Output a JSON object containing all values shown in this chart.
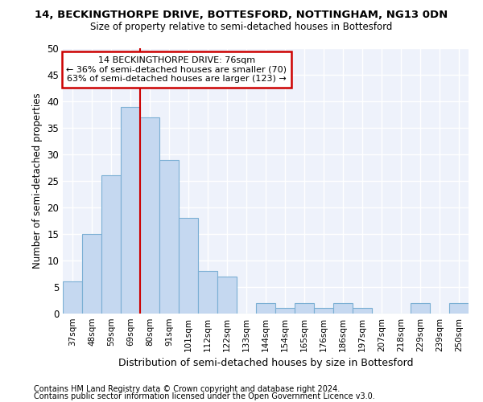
{
  "title": "14, BECKINGTHORPE DRIVE, BOTTESFORD, NOTTINGHAM, NG13 0DN",
  "subtitle": "Size of property relative to semi-detached houses in Bottesford",
  "xlabel": "Distribution of semi-detached houses by size in Bottesford",
  "ylabel": "Number of semi-detached properties",
  "footnote1": "Contains HM Land Registry data © Crown copyright and database right 2024.",
  "footnote2": "Contains public sector information licensed under the Open Government Licence v3.0.",
  "bins": [
    "37sqm",
    "48sqm",
    "59sqm",
    "69sqm",
    "80sqm",
    "91sqm",
    "101sqm",
    "112sqm",
    "122sqm",
    "133sqm",
    "144sqm",
    "154sqm",
    "165sqm",
    "176sqm",
    "186sqm",
    "197sqm",
    "207sqm",
    "218sqm",
    "229sqm",
    "239sqm",
    "250sqm"
  ],
  "values": [
    6,
    15,
    26,
    39,
    37,
    29,
    18,
    8,
    7,
    0,
    2,
    1,
    2,
    1,
    2,
    1,
    0,
    0,
    2,
    0,
    2
  ],
  "bar_color": "#c5d8f0",
  "bar_edge_color": "#7bafd4",
  "annotation_text_line1": "14 BECKINGTHORPE DRIVE: 76sqm",
  "annotation_text_line2": "← 36% of semi-detached houses are smaller (70)",
  "annotation_text_line3": "63% of semi-detached houses are larger (123) →",
  "red_line_color": "#cc0000",
  "ylim": [
    0,
    50
  ],
  "yticks": [
    0,
    5,
    10,
    15,
    20,
    25,
    30,
    35,
    40,
    45,
    50
  ],
  "plot_bg_color": "#eef2fb"
}
